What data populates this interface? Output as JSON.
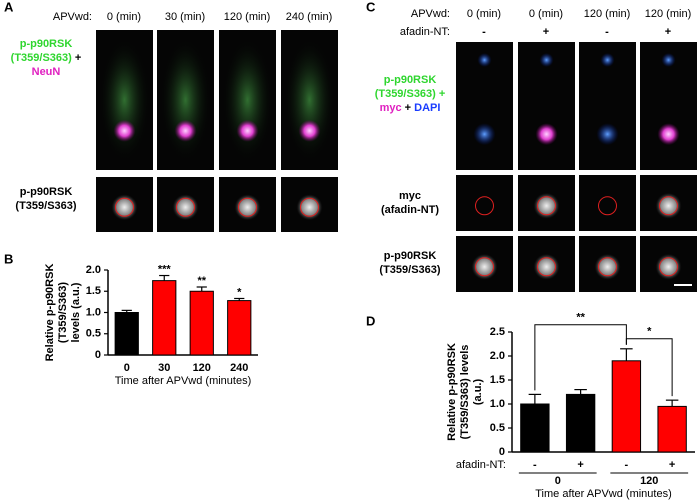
{
  "panel_a": {
    "label": "A",
    "header_label": "APVwd:",
    "columns": [
      "0 (min)",
      "30 (min)",
      "120 (min)",
      "240 (min)"
    ],
    "row1_label": [
      "p-p90RSK",
      "(T359/S363)",
      "+",
      "NeuN"
    ],
    "row2_label": [
      "p-p90RSK",
      "(T359/S363)"
    ]
  },
  "panel_b": {
    "label": "B"
  },
  "panel_c": {
    "label": "C",
    "header_label": "APVwd:",
    "columns": [
      "0 (min)",
      "0 (min)",
      "120 (min)",
      "120 (min)"
    ],
    "header2_label": "afadin-NT:",
    "signs": [
      "-",
      "+",
      "-",
      "+"
    ],
    "row1_label": [
      "p-p90RSK",
      "(T359/S363) +",
      "myc",
      "+",
      "DAPI"
    ],
    "row2_label": [
      "myc",
      "(afadin-NT)"
    ],
    "row3_label": [
      "p-p90RSK",
      "(T359/S363)"
    ]
  },
  "panel_d": {
    "label": "D"
  },
  "chart_data": [
    {
      "type": "bar",
      "ylabel": [
        "Relative p-p90RSK",
        "(T359/S363)",
        "levels (a.u.)"
      ],
      "xlabel": "Time after APVwd (minutes)",
      "categories": [
        "0",
        "30",
        "120",
        "240"
      ],
      "values": [
        1.0,
        1.75,
        1.5,
        1.28
      ],
      "errors": [
        0.05,
        0.12,
        0.1,
        0.05
      ],
      "colors": [
        "#000000",
        "#ff0000",
        "#ff0000",
        "#ff0000"
      ],
      "annotations": [
        null,
        "***",
        "**",
        "*"
      ],
      "ylim": [
        0,
        2.0
      ],
      "yticks": [
        0,
        0.5,
        {
          "value": 1,
          "label": "1.0"
        },
        1.5,
        {
          "value": 2,
          "label": "2.0"
        }
      ]
    },
    {
      "type": "bar",
      "ylabel": [
        "Relative p-p90RSK",
        "(T359/S363) levels",
        "(a.u.)"
      ],
      "xlabel": "Time after APVwd (minutes)",
      "category_label": "afadin-NT:",
      "categories": [
        "-",
        "+",
        "-",
        "+"
      ],
      "groups": [
        "0",
        "120"
      ],
      "values": [
        1.0,
        1.2,
        1.9,
        0.95
      ],
      "errors": [
        0.2,
        0.1,
        0.25,
        0.13
      ],
      "colors": [
        "#000000",
        "#000000",
        "#ff0000",
        "#ff0000"
      ],
      "brackets": [
        {
          "text": "**",
          "from": 0,
          "to": 2
        },
        {
          "text": "*",
          "from": 2,
          "to": 3
        }
      ],
      "ylim": [
        0,
        2.5
      ],
      "yticks": [
        0,
        0.5,
        {
          "value": 1,
          "label": "1.0"
        },
        1.5,
        {
          "value": 2,
          "label": "2.0"
        },
        2.5
      ]
    }
  ]
}
